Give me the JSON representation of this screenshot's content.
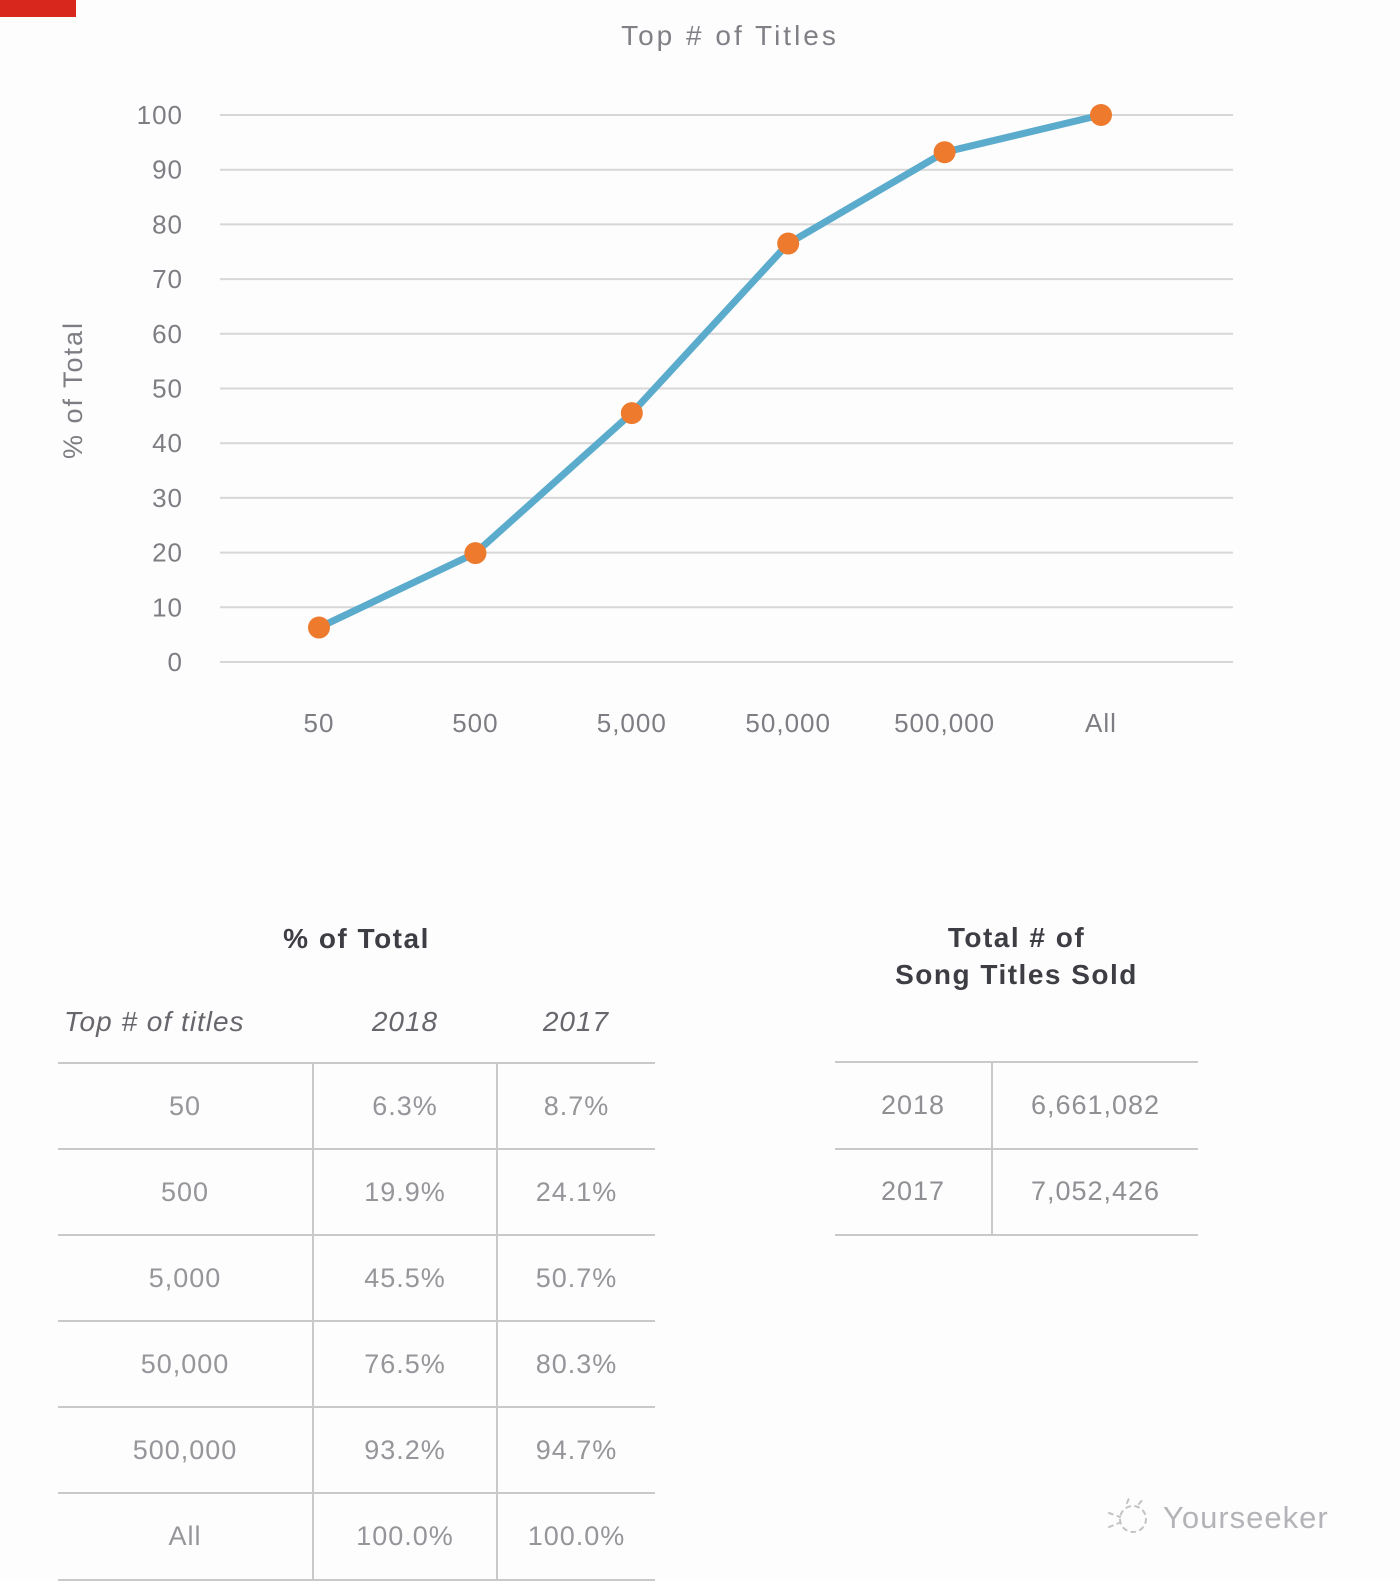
{
  "chart_data": {
    "type": "line",
    "title": "Top # of Titles",
    "xlabel": "",
    "ylabel": "% of Total",
    "ylim": [
      0,
      100
    ],
    "y_ticks": [
      0,
      10,
      20,
      30,
      40,
      50,
      60,
      70,
      80,
      90,
      100
    ],
    "grid": true,
    "legend": "none",
    "categories": [
      "50",
      "500",
      "5,000",
      "50,000",
      "500,000",
      "All"
    ],
    "plotted_series": "2018",
    "series": [
      {
        "name": "2018",
        "values": [
          6.3,
          19.9,
          45.5,
          76.5,
          93.2,
          100.0
        ]
      },
      {
        "name": "2017",
        "values": [
          8.7,
          24.1,
          50.7,
          80.3,
          94.7,
          100.0
        ]
      }
    ],
    "line_color": "#5babcc",
    "marker_color": "#ee7a2e",
    "grid_color": "#d7d7d7",
    "axis_text_color": "#7d7d83"
  },
  "tables": {
    "percent_of_total": {
      "title": "% of Total",
      "headers": [
        "Top # of titles",
        "2018",
        "2017"
      ],
      "rows": [
        [
          "50",
          "6.3%",
          "8.7%"
        ],
        [
          "500",
          "19.9%",
          "24.1%"
        ],
        [
          "5,000",
          "45.5%",
          "50.7%"
        ],
        [
          "50,000",
          "76.5%",
          "80.3%"
        ],
        [
          "500,000",
          "93.2%",
          "94.7%"
        ],
        [
          "All",
          "100.0%",
          "100.0%"
        ]
      ]
    },
    "song_titles_sold": {
      "title_line1": "Total # of",
      "title_line2": "Song Titles Sold",
      "rows": [
        [
          "2018",
          "6,661,082"
        ],
        [
          "2017",
          "7,052,426"
        ]
      ]
    }
  },
  "watermark": {
    "text": "Yourseeker"
  }
}
